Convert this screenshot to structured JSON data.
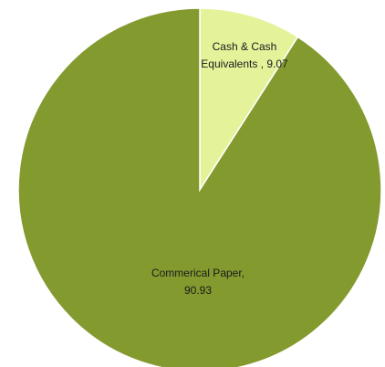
{
  "chart_data": {
    "type": "pie",
    "slices": [
      {
        "name": "Cash & Cash Equivalents",
        "value": 9.07,
        "label_line1": "Cash & Cash",
        "label_line2": "Equivalents , 9.07",
        "color": "#e4f29a"
      },
      {
        "name": "Commerical Paper",
        "value": 90.93,
        "label_line1": "Commerical Paper,",
        "label_line2": "90.93",
        "color": "#839a2f"
      }
    ],
    "start": "12 o'clock",
    "direction": "clockwise",
    "legend": "none"
  }
}
